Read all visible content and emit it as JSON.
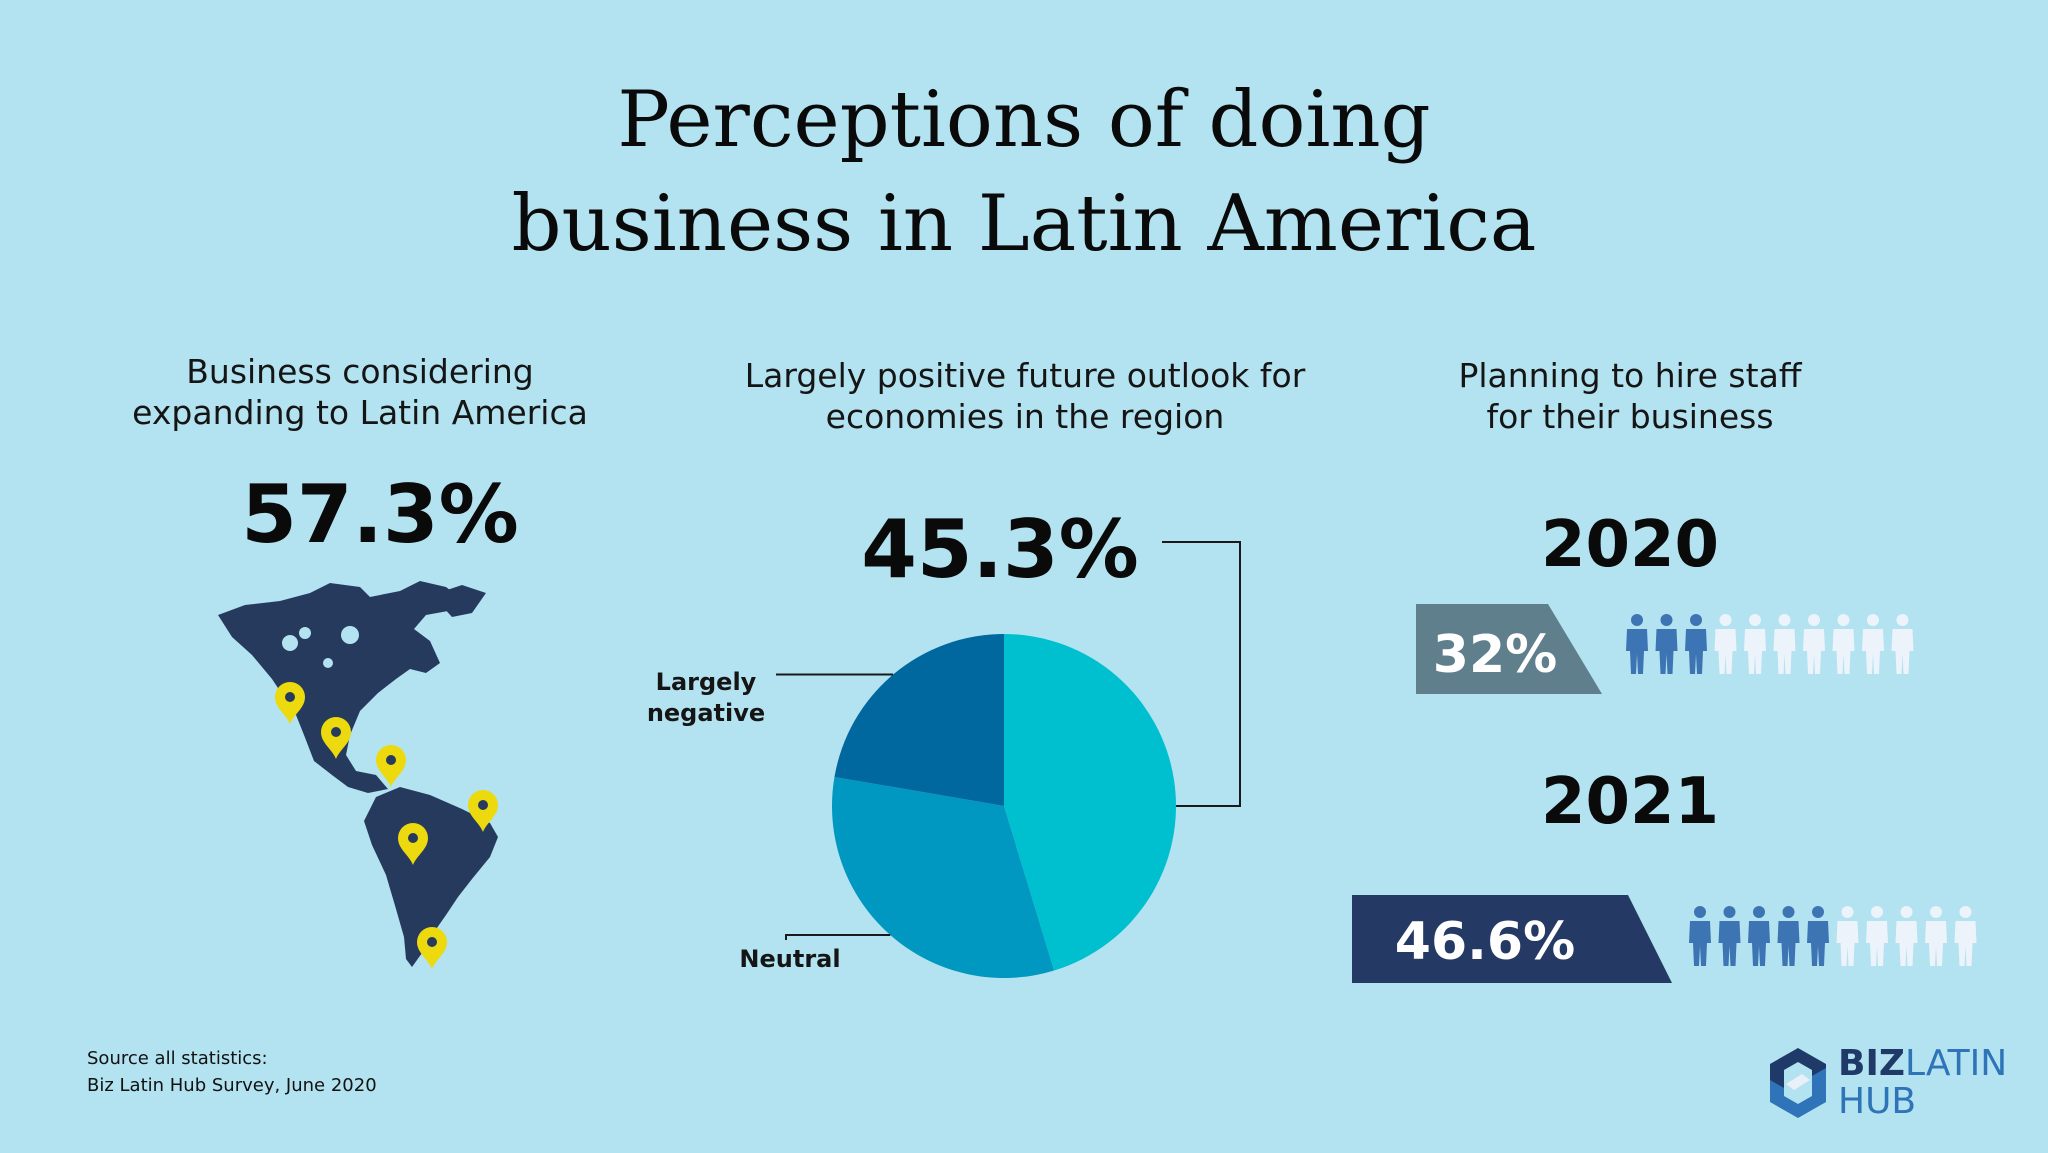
{
  "title_line1": "Perceptions of doing",
  "title_line2": "business in Latin America",
  "colors": {
    "background": "#b3e3f0",
    "map": "#263a5e",
    "pin": "#ecd90e",
    "pie_positive": "#00c0cf",
    "pie_neutral": "#0098c0",
    "pie_negative": "#00689f",
    "person_filled": "#3d74b4",
    "person_empty": "#ecf3fb",
    "banner_2020": "#5f7f8d",
    "banner_2021": "#243963"
  },
  "left": {
    "subtitle_line1": "Business considering",
    "subtitle_line2": "expanding to Latin America",
    "value": "57.3%"
  },
  "middle": {
    "subtitle_line1": "Largely positive future outlook for",
    "subtitle_line2": "economies in the region",
    "value": "45.3%"
  },
  "right": {
    "subtitle_line1": "Planning to hire staff",
    "subtitle_line2": "for their business",
    "rows": [
      {
        "year": "2020",
        "percent_label": "32%",
        "value": 32
      },
      {
        "year": "2021",
        "percent_label": "46.6%",
        "value": 46.6
      }
    ]
  },
  "chart_data": [
    {
      "type": "pie",
      "slices": [
        {
          "name": "",
          "value": 45.3,
          "color": "#00c0cf"
        },
        {
          "name": "Neutral",
          "value": 32.4,
          "color": "#0098c0"
        },
        {
          "name": "Largely negative",
          "value": 22.3,
          "color": "#00689f"
        }
      ],
      "annotations": [
        "45.3%",
        "Largely negative",
        "Neutral"
      ]
    },
    {
      "type": "bar",
      "categories": [
        "2020",
        "2021"
      ],
      "values": [
        32,
        46.6
      ],
      "data_labels": [
        "32%",
        "46.6%"
      ],
      "ylim": [
        0,
        100
      ]
    }
  ],
  "source_line1": "Source  all statistics:",
  "source_line2": "Biz Latin Hub Survey, June 2020",
  "logo_part1": "BIZ",
  "logo_part2": "LATIN",
  "logo_part3": "HUB"
}
